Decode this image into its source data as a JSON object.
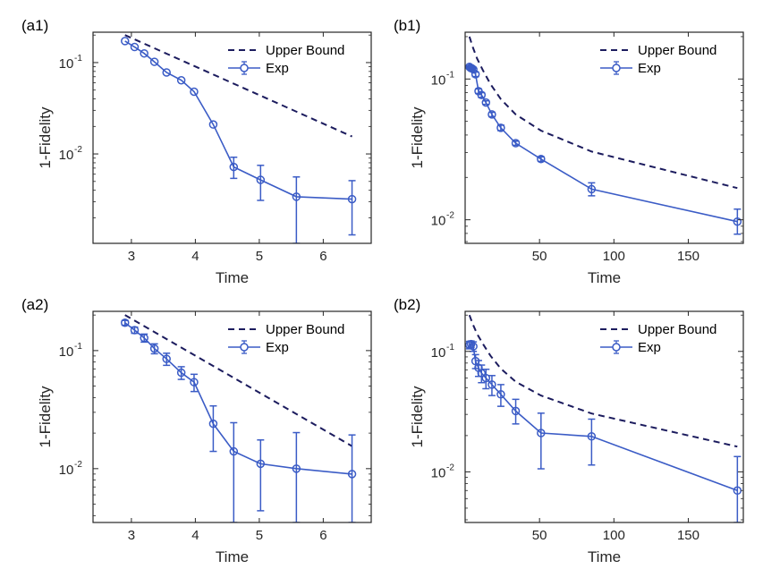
{
  "colors": {
    "exp": "#3b5cc6",
    "upper_bound": "#1c1c5e",
    "axis": "#262626"
  },
  "chart_data": [
    {
      "id": "a1",
      "panel_label": "(a1)",
      "type": "line",
      "xlabel": "Time",
      "ylabel": "1-Fidelity",
      "yscale": "log",
      "xlim": [
        2.4,
        6.75
      ],
      "ylim": [
        0.00105,
        0.215
      ],
      "xticks": [
        3,
        4,
        5,
        6
      ],
      "xtick_labels": [
        "3",
        "4",
        "5",
        "6"
      ],
      "yticks": [
        0.1,
        0.01
      ],
      "ytick_labels": [
        {
          "base": "10",
          "exp": "-1"
        },
        {
          "base": "10",
          "exp": "-2"
        }
      ],
      "legend": {
        "position": "top-right",
        "entries": [
          "Upper Bound",
          "Exp"
        ]
      },
      "series": [
        {
          "name": "Upper Bound",
          "style": "dashed",
          "x": [
            2.9,
            6.45
          ],
          "y": [
            0.2,
            0.0155
          ]
        },
        {
          "name": "Exp",
          "style": "line-circle-errorbar",
          "x": [
            2.9,
            3.05,
            3.2,
            3.36,
            3.55,
            3.78,
            3.98,
            4.28,
            4.6,
            5.02,
            5.58,
            6.45
          ],
          "y": [
            0.172,
            0.148,
            0.126,
            0.102,
            0.078,
            0.064,
            0.048,
            0.021,
            0.0072,
            0.0052,
            0.0034,
            0.0032
          ],
          "err_low": [
            0.172,
            0.148,
            0.126,
            0.102,
            0.078,
            0.064,
            0.048,
            0.021,
            0.0054,
            0.0031,
            0.00105,
            0.0013
          ],
          "err_high": [
            0.172,
            0.148,
            0.126,
            0.102,
            0.078,
            0.064,
            0.048,
            0.021,
            0.0092,
            0.0075,
            0.0056,
            0.0051
          ]
        }
      ]
    },
    {
      "id": "b1",
      "panel_label": "(b1)",
      "type": "line",
      "xlabel": "Time",
      "ylabel": "1-Fidelity",
      "yscale": "log",
      "xlim": [
        0,
        187
      ],
      "ylim": [
        0.0068,
        0.215
      ],
      "xticks": [
        50,
        100,
        150
      ],
      "xtick_labels": [
        "50",
        "100",
        "150"
      ],
      "yticks": [
        0.1,
        0.01
      ],
      "ytick_labels": [
        {
          "base": "10",
          "exp": "-1"
        },
        {
          "base": "10",
          "exp": "-2"
        }
      ],
      "legend": {
        "position": "top-right",
        "entries": [
          "Upper Bound",
          "Exp"
        ]
      },
      "series": [
        {
          "name": "Upper Bound",
          "style": "dashed",
          "x": [
            2.9,
            5,
            8,
            12,
            17,
            24,
            34,
            51,
            85,
            183
          ],
          "y": [
            0.2,
            0.17,
            0.14,
            0.115,
            0.092,
            0.072,
            0.056,
            0.043,
            0.0305,
            0.0168
          ]
        },
        {
          "name": "Exp",
          "style": "line-circle-errorbar",
          "x": [
            2.9,
            3.6,
            4.5,
            5.5,
            7,
            9,
            11,
            14,
            18,
            24,
            34,
            51,
            85,
            183
          ],
          "y": [
            0.122,
            0.12,
            0.119,
            0.117,
            0.108,
            0.082,
            0.077,
            0.068,
            0.056,
            0.045,
            0.035,
            0.027,
            0.0165,
            0.0097
          ],
          "err_low": [
            0.12,
            0.118,
            0.117,
            0.115,
            0.104,
            0.079,
            0.074,
            0.066,
            0.054,
            0.043,
            0.0338,
            0.026,
            0.0148,
            0.0079
          ],
          "err_high": [
            0.124,
            0.122,
            0.121,
            0.119,
            0.112,
            0.085,
            0.08,
            0.07,
            0.058,
            0.047,
            0.0362,
            0.028,
            0.0183,
            0.0119
          ]
        }
      ]
    },
    {
      "id": "a2",
      "panel_label": "(a2)",
      "type": "line",
      "xlabel": "Time",
      "ylabel": "1-Fidelity",
      "yscale": "log",
      "xlim": [
        2.4,
        6.75
      ],
      "ylim": [
        0.0035,
        0.215
      ],
      "xticks": [
        3,
        4,
        5,
        6
      ],
      "xtick_labels": [
        "3",
        "4",
        "5",
        "6"
      ],
      "yticks": [
        0.1,
        0.01
      ],
      "ytick_labels": [
        {
          "base": "10",
          "exp": "-1"
        },
        {
          "base": "10",
          "exp": "-2"
        }
      ],
      "legend": {
        "position": "top-right",
        "entries": [
          "Upper Bound",
          "Exp"
        ]
      },
      "series": [
        {
          "name": "Upper Bound",
          "style": "dashed",
          "x": [
            2.9,
            6.45
          ],
          "y": [
            0.2,
            0.0155
          ]
        },
        {
          "name": "Exp",
          "style": "line-circle-errorbar",
          "x": [
            2.9,
            3.05,
            3.2,
            3.36,
            3.55,
            3.78,
            3.98,
            4.28,
            4.6,
            5.02,
            5.58,
            6.45
          ],
          "y": [
            0.172,
            0.149,
            0.128,
            0.104,
            0.085,
            0.065,
            0.054,
            0.024,
            0.014,
            0.011,
            0.01,
            0.009
          ],
          "err_low": [
            0.164,
            0.14,
            0.118,
            0.094,
            0.075,
            0.057,
            0.045,
            0.014,
            0.0035,
            0.0044,
            0.0035,
            0.0035
          ],
          "err_high": [
            0.18,
            0.158,
            0.138,
            0.114,
            0.095,
            0.073,
            0.063,
            0.034,
            0.0245,
            0.0175,
            0.0202,
            0.0193
          ]
        }
      ]
    },
    {
      "id": "b2",
      "panel_label": "(b2)",
      "type": "line",
      "xlabel": "Time",
      "ylabel": "1-Fidelity",
      "yscale": "log",
      "xlim": [
        0,
        187
      ],
      "ylim": [
        0.0038,
        0.215
      ],
      "xticks": [
        50,
        100,
        150
      ],
      "xtick_labels": [
        "50",
        "100",
        "150"
      ],
      "yticks": [
        0.1,
        0.01
      ],
      "ytick_labels": [
        {
          "base": "10",
          "exp": "-1"
        },
        {
          "base": "10",
          "exp": "-2"
        }
      ],
      "legend": {
        "position": "top-right",
        "entries": [
          "Upper Bound",
          "Exp"
        ]
      },
      "series": [
        {
          "name": "Upper Bound",
          "style": "dashed",
          "x": [
            2.9,
            5,
            8,
            12,
            17,
            24,
            34,
            51,
            85,
            183
          ],
          "y": [
            0.2,
            0.17,
            0.14,
            0.115,
            0.092,
            0.072,
            0.056,
            0.043,
            0.0305,
            0.0162
          ]
        },
        {
          "name": "Exp",
          "style": "line-circle-errorbar",
          "x": [
            2.9,
            4,
            5.5,
            7,
            9,
            11,
            14,
            18,
            24,
            34,
            51,
            85,
            183
          ],
          "y": [
            0.113,
            0.115,
            0.11,
            0.083,
            0.073,
            0.066,
            0.06,
            0.053,
            0.044,
            0.032,
            0.021,
            0.0197,
            0.007
          ],
          "err_low": [
            0.105,
            0.108,
            0.1,
            0.072,
            0.062,
            0.055,
            0.049,
            0.043,
            0.035,
            0.025,
            0.0106,
            0.0114,
            0.0038
          ],
          "err_high": [
            0.121,
            0.122,
            0.12,
            0.094,
            0.084,
            0.077,
            0.071,
            0.063,
            0.053,
            0.04,
            0.0307,
            0.0274,
            0.0134
          ]
        }
      ]
    }
  ]
}
